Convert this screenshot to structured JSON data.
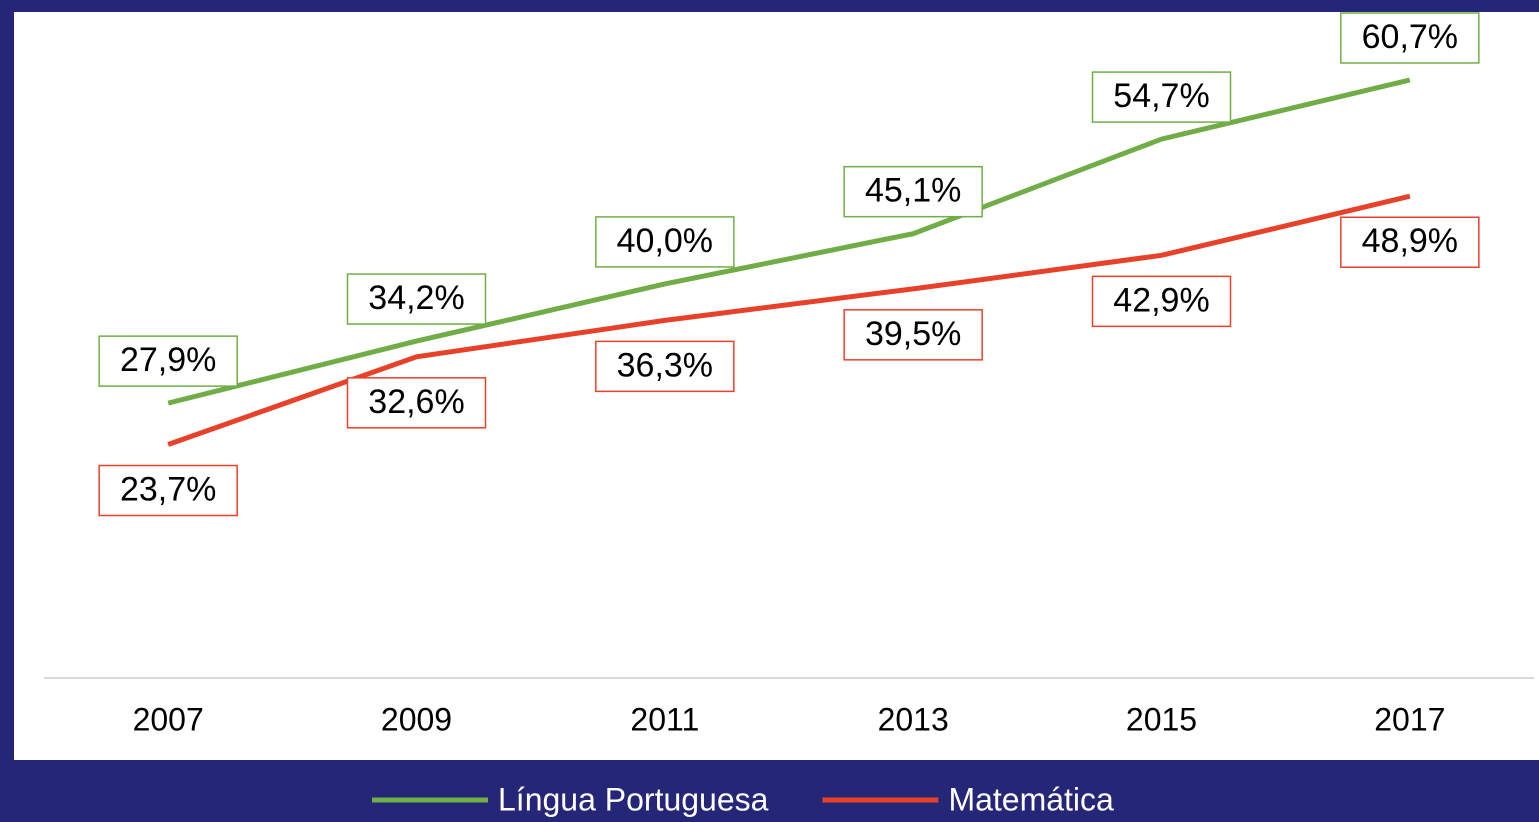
{
  "chart_data": {
    "type": "line",
    "categories": [
      "2007",
      "2009",
      "2011",
      "2013",
      "2015",
      "2017"
    ],
    "series": [
      {
        "name": "Língua Portuguesa",
        "color": "#70ad47",
        "values": [
          27.9,
          34.2,
          40.0,
          45.1,
          54.7,
          60.7
        ],
        "value_labels": [
          "27,9%",
          "34,2%",
          "40,0%",
          "45,1%",
          "54,7%",
          "60,7%"
        ]
      },
      {
        "name": "Matemática",
        "color": "#e8412a",
        "values": [
          23.7,
          32.6,
          36.3,
          39.5,
          42.9,
          48.9
        ],
        "value_labels": [
          "23,7%",
          "32,6%",
          "36,3%",
          "39,5%",
          "42,9%",
          "48,9%"
        ]
      }
    ],
    "ylim": [
      0,
      67.6
    ],
    "legend": "bottom"
  }
}
